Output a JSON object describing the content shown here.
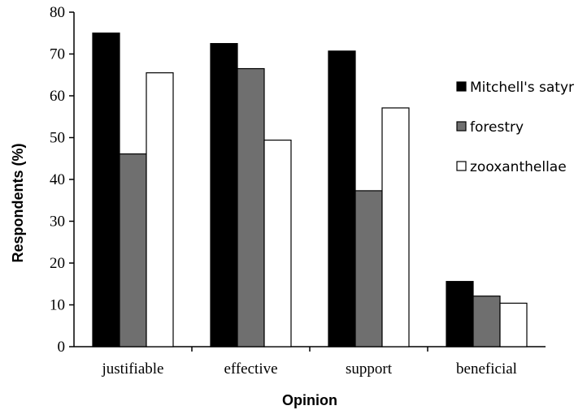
{
  "chart_data": {
    "type": "bar",
    "title": "",
    "xlabel": "Opinion",
    "ylabel": "Respondents (%)",
    "ylim": [
      0,
      80
    ],
    "yticks": [
      0,
      10,
      20,
      30,
      40,
      50,
      60,
      70,
      80
    ],
    "categories": [
      "justifiable",
      "effective",
      "support",
      "beneficial"
    ],
    "series": [
      {
        "name": "Mitchell's satyr",
        "color": "#000000",
        "values": [
          75.0,
          72.5,
          70.7,
          15.6
        ]
      },
      {
        "name": "forestry",
        "color": "#6f6f6f",
        "values": [
          46.1,
          66.5,
          37.3,
          12.1
        ]
      },
      {
        "name": "zooxanthellae",
        "color": "#ffffff",
        "values": [
          65.5,
          49.4,
          57.1,
          10.4
        ]
      }
    ],
    "grid": false,
    "legend_position": "right"
  }
}
